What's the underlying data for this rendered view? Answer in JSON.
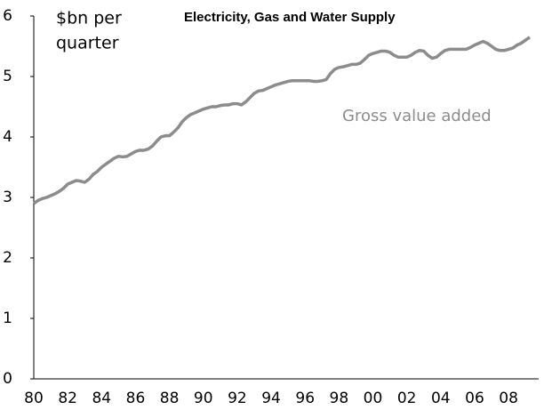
{
  "chart_data": {
    "type": "line",
    "title": "Electricity, Gas and Water Supply",
    "y_label": [
      "$bn per",
      "quarter"
    ],
    "annotation": "Gross value  added",
    "categories": [
      "80",
      null,
      null,
      null,
      null,
      null,
      null,
      null,
      "82",
      null,
      null,
      null,
      null,
      null,
      null,
      null,
      "84",
      null,
      null,
      null,
      null,
      null,
      null,
      null,
      "86",
      null,
      null,
      null,
      null,
      null,
      null,
      null,
      "88",
      null,
      null,
      null,
      null,
      null,
      null,
      null,
      "90",
      null,
      null,
      null,
      null,
      null,
      null,
      null,
      "92",
      null,
      null,
      null,
      null,
      null,
      null,
      null,
      "94",
      null,
      null,
      null,
      null,
      null,
      null,
      null,
      "96",
      null,
      null,
      null,
      null,
      null,
      null,
      null,
      "98",
      null,
      null,
      null,
      null,
      null,
      null,
      null,
      "00",
      null,
      null,
      null,
      null,
      null,
      null,
      null,
      "02",
      null,
      null,
      null,
      null,
      null,
      null,
      null,
      "04",
      null,
      null,
      null,
      null,
      null,
      null,
      null,
      "06",
      null,
      null,
      null,
      null,
      null,
      null,
      null,
      "08",
      null,
      null,
      null,
      null,
      null
    ],
    "series": [
      {
        "name": "Gross value  added",
        "color": "#8c8c8c",
        "values": [
          2.9,
          2.95,
          2.98,
          3.0,
          3.03,
          3.06,
          3.1,
          3.15,
          3.22,
          3.25,
          3.28,
          3.27,
          3.25,
          3.3,
          3.38,
          3.43,
          3.5,
          3.55,
          3.6,
          3.65,
          3.68,
          3.67,
          3.68,
          3.72,
          3.76,
          3.78,
          3.78,
          3.8,
          3.85,
          3.93,
          4.0,
          4.02,
          4.02,
          4.08,
          4.15,
          4.25,
          4.32,
          4.37,
          4.4,
          4.43,
          4.46,
          4.48,
          4.5,
          4.5,
          4.52,
          4.53,
          4.53,
          4.55,
          4.55,
          4.53,
          4.58,
          4.65,
          4.72,
          4.76,
          4.77,
          4.8,
          4.83,
          4.86,
          4.88,
          4.9,
          4.92,
          4.93,
          4.93,
          4.93,
          4.93,
          4.93,
          4.92,
          4.92,
          4.93,
          4.95,
          5.05,
          5.12,
          5.15,
          5.16,
          5.18,
          5.2,
          5.2,
          5.22,
          5.28,
          5.35,
          5.38,
          5.4,
          5.42,
          5.42,
          5.4,
          5.35,
          5.32,
          5.32,
          5.32,
          5.35,
          5.4,
          5.43,
          5.42,
          5.35,
          5.3,
          5.32,
          5.38,
          5.43,
          5.45,
          5.45,
          5.45,
          5.45,
          5.45,
          5.48,
          5.52,
          5.55,
          5.58,
          5.55,
          5.5,
          5.45,
          5.43,
          5.43,
          5.45,
          5.47,
          5.52,
          5.55,
          5.6,
          5.65
        ]
      }
    ],
    "ylim": [
      0,
      6
    ],
    "yticks": [
      0,
      1,
      2,
      3,
      4,
      5,
      6
    ],
    "grid": false
  }
}
